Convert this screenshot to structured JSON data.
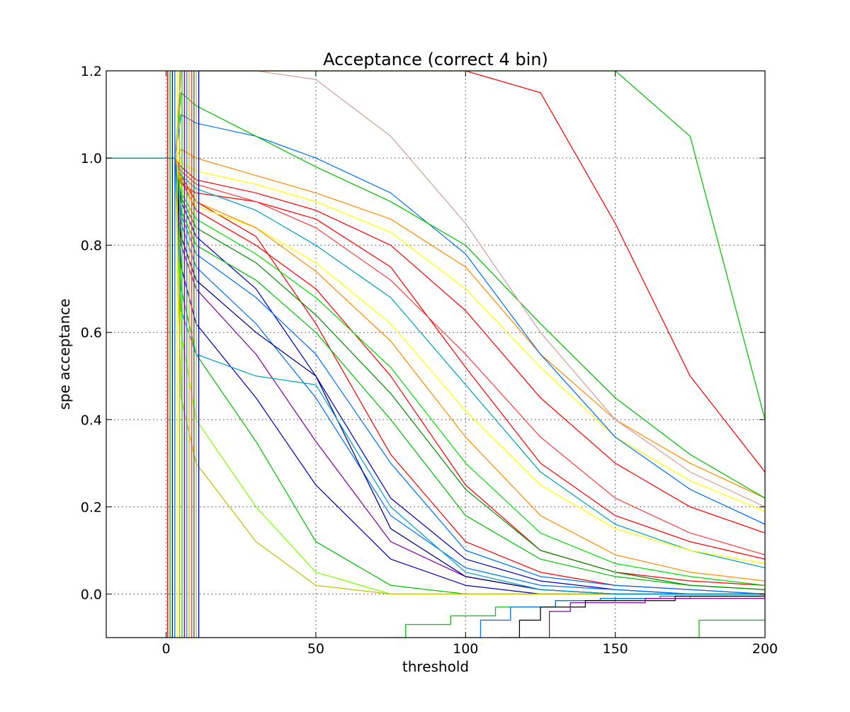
{
  "chart_data": {
    "type": "line",
    "title": "Acceptance (correct 4 bin)",
    "xlabel": "threshold",
    "ylabel": "spe acceptance",
    "xlim": [
      -20,
      200
    ],
    "ylim": [
      -0.1,
      1.2
    ],
    "xticks": [
      0,
      50,
      100,
      150,
      200
    ],
    "yticks": [
      0.0,
      0.2,
      0.4,
      0.6,
      0.8,
      1.0,
      1.2
    ],
    "xtick_labels": [
      "0",
      "50",
      "100",
      "150",
      "200"
    ],
    "ytick_labels": [
      "0.0",
      "0.2",
      "0.4",
      "0.6",
      "0.8",
      "1.0",
      "1.2"
    ],
    "grid": true,
    "legend": "none",
    "palette": [
      "#ff0000",
      "#00c000",
      "#0000c0",
      "#0070ff",
      "#ffff00",
      "#ff8c00",
      "#00e000",
      "#8000a0",
      "#00a0c0",
      "#c0c000",
      "#ff4040",
      "#009000",
      "#d0a0a0",
      "#000080",
      "#80ff00"
    ],
    "series_shape": "sigmoid",
    "series_note_x": [
      -20,
      3,
      5,
      10,
      30,
      50,
      75,
      100,
      125,
      150,
      175,
      200
    ],
    "series": [
      {
        "y": [
          1.0,
          1.0,
          0.96,
          0.9,
          0.82,
          0.62,
          0.32,
          0.12,
          0.05,
          0.02,
          0.01,
          0.0
        ],
        "color": "#ff0000"
      },
      {
        "y": [
          1.0,
          1.0,
          0.95,
          0.88,
          0.8,
          0.7,
          0.5,
          0.25,
          0.1,
          0.05,
          0.03,
          0.02
        ],
        "color": "#ff0000"
      },
      {
        "y": [
          1.0,
          1.0,
          0.94,
          0.92,
          0.9,
          0.86,
          0.75,
          0.52,
          0.3,
          0.18,
          0.12,
          0.08
        ],
        "color": "#ff0000"
      },
      {
        "y": [
          1.0,
          1.0,
          0.98,
          0.95,
          0.92,
          0.88,
          0.8,
          0.65,
          0.45,
          0.3,
          0.2,
          0.14
        ],
        "color": "#ff0000"
      },
      {
        "y": [
          1.0,
          1.0,
          1.02,
          1.0,
          0.96,
          0.92,
          0.86,
          0.75,
          0.55,
          0.4,
          0.3,
          0.22
        ],
        "color": "#ff8c00"
      },
      {
        "y": [
          1.0,
          1.0,
          0.9,
          0.82,
          0.7,
          0.5,
          0.22,
          0.08,
          0.03,
          0.01,
          0.0,
          0.0
        ],
        "color": "#0000c0"
      },
      {
        "y": [
          1.0,
          1.0,
          0.85,
          0.75,
          0.62,
          0.45,
          0.18,
          0.06,
          0.02,
          0.01,
          0.0,
          0.0
        ],
        "color": "#0070ff"
      },
      {
        "y": [
          1.0,
          1.0,
          0.8,
          0.7,
          0.55,
          0.35,
          0.12,
          0.04,
          0.01,
          0.0,
          0.0,
          0.0
        ],
        "color": "#8000a0"
      },
      {
        "y": [
          1.0,
          1.0,
          0.88,
          0.8,
          0.72,
          0.6,
          0.4,
          0.18,
          0.08,
          0.04,
          0.02,
          0.01
        ],
        "color": "#00c000"
      },
      {
        "y": [
          1.0,
          1.0,
          0.92,
          0.86,
          0.78,
          0.68,
          0.52,
          0.3,
          0.14,
          0.07,
          0.04,
          0.02
        ],
        "color": "#00e000"
      },
      {
        "y": [
          1.0,
          1.0,
          0.96,
          0.93,
          0.88,
          0.8,
          0.68,
          0.48,
          0.28,
          0.16,
          0.1,
          0.06
        ],
        "color": "#00a0c0"
      },
      {
        "y": [
          1.0,
          1.0,
          0.93,
          0.89,
          0.84,
          0.76,
          0.62,
          0.42,
          0.25,
          0.15,
          0.1,
          0.07
        ],
        "color": "#ffff00"
      },
      {
        "y": [
          1.0,
          1.0,
          0.99,
          0.97,
          0.94,
          0.9,
          0.83,
          0.7,
          0.52,
          0.36,
          0.26,
          0.19
        ],
        "color": "#ffff00"
      },
      {
        "y": [
          1.0,
          1.0,
          0.75,
          0.62,
          0.45,
          0.25,
          0.08,
          0.02,
          0.0,
          0.0,
          0.0,
          0.0
        ],
        "color": "#0000c0"
      },
      {
        "y": [
          1.0,
          1.0,
          0.7,
          0.55,
          0.35,
          0.12,
          0.02,
          0.0,
          0.0,
          0.0,
          0.0,
          0.0
        ],
        "color": "#00c000"
      },
      {
        "y": [
          1.0,
          1.0,
          0.6,
          0.4,
          0.2,
          0.05,
          0.0,
          0.0,
          0.0,
          0.0,
          0.0,
          0.0
        ],
        "color": "#80ff00"
      },
      {
        "y": [
          1.0,
          1.0,
          0.45,
          0.3,
          0.12,
          0.02,
          0.0,
          0.0,
          0.0,
          0.0,
          0.0,
          0.0
        ],
        "color": "#c0c000"
      },
      {
        "y": [
          1.0,
          1.0,
          1.1,
          1.08,
          1.05,
          1.0,
          0.92,
          0.78,
          0.55,
          0.36,
          0.24,
          0.16
        ],
        "color": "#0070ff"
      },
      {
        "y": [
          1.0,
          1.0,
          1.15,
          1.12,
          1.05,
          0.98,
          0.9,
          0.8,
          0.62,
          0.45,
          0.32,
          0.22
        ],
        "color": "#00c000"
      },
      {
        "y": [
          1.0,
          1.0,
          0.97,
          0.94,
          0.9,
          0.84,
          0.72,
          0.55,
          0.36,
          0.22,
          0.14,
          0.09
        ],
        "color": "#ff4040"
      },
      {
        "y": [
          1.0,
          1.0,
          0.91,
          0.84,
          0.76,
          0.64,
          0.46,
          0.24,
          0.1,
          0.05,
          0.02,
          0.01
        ],
        "color": "#009000"
      },
      {
        "y": [
          1.0,
          1.0,
          0.87,
          0.78,
          0.68,
          0.55,
          0.3,
          0.1,
          0.04,
          0.02,
          0.01,
          0.0
        ],
        "color": "#0070ff"
      },
      {
        "y": [
          1.0,
          1.0,
          0.95,
          0.9,
          0.84,
          0.74,
          0.58,
          0.36,
          0.18,
          0.09,
          0.05,
          0.03
        ],
        "color": "#ff8c00"
      },
      {
        "y": [
          1.0,
          1.0,
          1.2,
          1.2,
          1.2,
          1.2,
          1.2,
          1.2,
          1.15,
          0.85,
          0.5,
          0.28
        ],
        "color": "#ff0000"
      },
      {
        "y": [
          1.0,
          1.0,
          1.2,
          1.2,
          1.2,
          1.2,
          1.2,
          1.2,
          1.2,
          1.2,
          1.05,
          0.4
        ],
        "color": "#00c000"
      },
      {
        "y": [
          1.0,
          1.0,
          1.2,
          1.2,
          1.2,
          1.18,
          1.05,
          0.85,
          0.6,
          0.4,
          0.28,
          0.2
        ],
        "color": "#d0a0a0"
      },
      {
        "y": [
          1.0,
          1.0,
          0.82,
          0.72,
          0.6,
          0.5,
          0.15,
          0.04,
          0.01,
          0.0,
          0.0,
          0.0
        ],
        "color": "#000080"
      },
      {
        "y": [
          1.0,
          1.0,
          0.65,
          0.55,
          0.5,
          0.48,
          0.2,
          0.05,
          0.01,
          0.0,
          0.0,
          0.0
        ],
        "color": "#00a0c0"
      }
    ],
    "negative_tails": [
      {
        "x": [
          72,
          80,
          95,
          110,
          130,
          150,
          175,
          200
        ],
        "y": [
          -0.1,
          -0.07,
          -0.05,
          -0.03,
          -0.015,
          -0.01,
          -0.005,
          0.0
        ],
        "color": "#00c000"
      },
      {
        "x": [
          97,
          105,
          115,
          130,
          145,
          165,
          200
        ],
        "y": [
          -0.1,
          -0.06,
          -0.03,
          -0.015,
          -0.01,
          -0.005,
          0.0
        ],
        "color": "#0070ff"
      },
      {
        "x": [
          112,
          118,
          125,
          140,
          170,
          200
        ],
        "y": [
          -0.1,
          -0.06,
          -0.03,
          -0.015,
          -0.005,
          0.0
        ],
        "color": "#000000"
      },
      {
        "x": [
          120,
          128,
          135,
          160,
          200
        ],
        "y": [
          -0.1,
          -0.04,
          -0.02,
          -0.01,
          0.0
        ],
        "color": "#8000a0"
      },
      {
        "x": [
          152,
          175,
          178,
          200
        ],
        "y": [
          -0.1,
          -0.1,
          -0.06,
          -0.06
        ],
        "color": "#00c000"
      }
    ]
  }
}
